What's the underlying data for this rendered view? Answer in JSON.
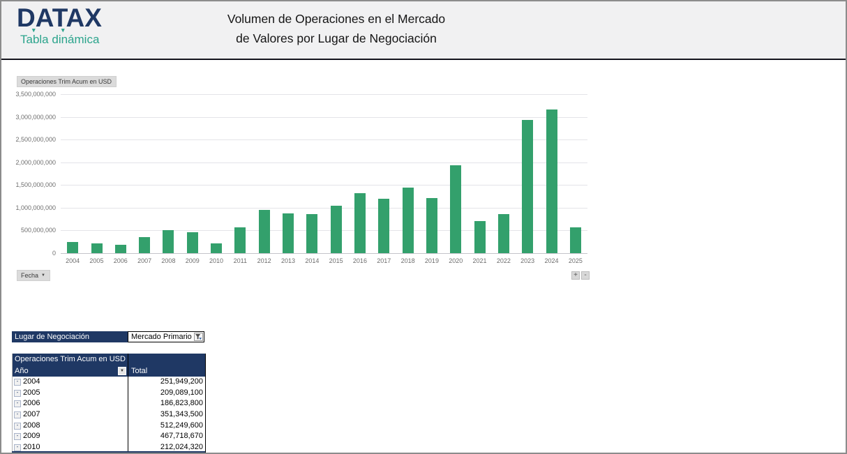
{
  "header": {
    "logo_text": "DATAX",
    "logo_subtitle": "Tabla dinámica",
    "title_line1": "Volumen de Operaciones en el Mercado",
    "title_line2": "de Valores por Lugar de Negociación"
  },
  "chart": {
    "value_field_button_label": "Operaciones Trim Acum en USD",
    "axis_field_button_label": "Fecha",
    "zoom_in_label": "+",
    "zoom_out_label": "-"
  },
  "chart_data": {
    "type": "bar",
    "title": "Operaciones Trim Acum en USD",
    "categories": [
      "2004",
      "2005",
      "2006",
      "2007",
      "2008",
      "2009",
      "2010",
      "2011",
      "2012",
      "2013",
      "2014",
      "2015",
      "2016",
      "2017",
      "2018",
      "2019",
      "2020",
      "2021",
      "2022",
      "2023",
      "2024",
      "2025"
    ],
    "values": [
      251949200,
      209089100,
      186823800,
      351343500,
      512249600,
      467718670,
      212024320,
      570000000,
      960000000,
      880000000,
      865000000,
      1040000000,
      1320000000,
      1200000000,
      1440000000,
      1220000000,
      1930000000,
      710000000,
      860000000,
      2940000000,
      3170000000,
      570000000
    ],
    "xlabel": "Fecha",
    "ylabel": "",
    "ylim": [
      0,
      3500000000
    ],
    "ytick_step": 500000000,
    "grid": true,
    "legend": false,
    "bar_color": "#33A06C"
  },
  "filter": {
    "field_label": "Lugar de Negociación",
    "selected_value": "Mercado Primario"
  },
  "pivot_table": {
    "title_cell": "Operaciones Trim Acum en USD",
    "row_header": "Año",
    "value_header": "Total",
    "rows": [
      {
        "year": "2004",
        "total": "251,949,200"
      },
      {
        "year": "2005",
        "total": "209,089,100"
      },
      {
        "year": "2006",
        "total": "186,823,800"
      },
      {
        "year": "2007",
        "total": "351,343,500"
      },
      {
        "year": "2008",
        "total": "512,249,600"
      },
      {
        "year": "2009",
        "total": "467,718,670"
      },
      {
        "year": "2010",
        "total": "212,024,320"
      }
    ]
  },
  "colors": {
    "navy": "#1F3864",
    "teal": "#2CA48C",
    "bar_green": "#33A06C",
    "header_band_bg": "#F1F1F2",
    "axis_text_grey": "#6E6E6E",
    "gridline_grey": "#E3E3E8"
  }
}
